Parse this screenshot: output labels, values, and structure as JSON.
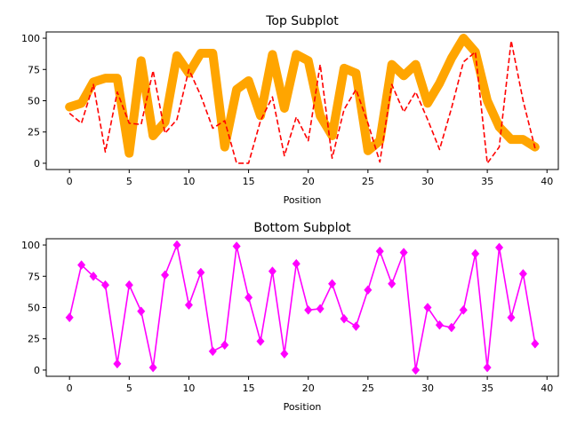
{
  "chart_data": [
    {
      "type": "line",
      "title": "Top Subplot",
      "xlabel": "Position",
      "ylabel": "",
      "xlim": [
        -1.95,
        40.95
      ],
      "ylim": [
        -5,
        105
      ],
      "xticks": [
        0,
        5,
        10,
        15,
        20,
        25,
        30,
        35,
        40
      ],
      "yticks": [
        0,
        25,
        50,
        75,
        100
      ],
      "x": [
        0,
        1,
        2,
        3,
        4,
        5,
        6,
        7,
        8,
        9,
        10,
        11,
        12,
        13,
        14,
        15,
        16,
        17,
        18,
        19,
        20,
        21,
        22,
        23,
        24,
        25,
        26,
        27,
        28,
        29,
        30,
        31,
        32,
        33,
        34,
        35,
        36,
        37,
        38,
        39
      ],
      "series": [
        {
          "style": "thick-solid",
          "color": "#ffa500",
          "values": [
            45,
            48,
            65,
            68,
            68,
            8,
            82,
            22,
            33,
            86,
            72,
            88,
            88,
            13,
            59,
            66,
            38,
            87,
            44,
            87,
            82,
            38,
            22,
            76,
            72,
            10,
            18,
            79,
            70,
            79,
            48,
            64,
            84,
            100,
            89,
            50,
            29,
            19,
            19,
            13
          ]
        },
        {
          "style": "dashed",
          "color": "#ff0000",
          "values": [
            40,
            32,
            63,
            9,
            57,
            32,
            31,
            74,
            24,
            35,
            75,
            54,
            28,
            34,
            0,
            0,
            34,
            53,
            6,
            37,
            18,
            79,
            4,
            43,
            59,
            32,
            1,
            63,
            41,
            57,
            35,
            11,
            44,
            81,
            89,
            0,
            13,
            98,
            50,
            12
          ]
        }
      ]
    },
    {
      "type": "line",
      "title": "Bottom Subplot",
      "xlabel": "Position",
      "ylabel": "",
      "xlim": [
        -1.95,
        40.95
      ],
      "ylim": [
        -5,
        105
      ],
      "xticks": [
        0,
        5,
        10,
        15,
        20,
        25,
        30,
        35,
        40
      ],
      "yticks": [
        0,
        25,
        50,
        75,
        100
      ],
      "x": [
        0,
        1,
        2,
        3,
        4,
        5,
        6,
        7,
        8,
        9,
        10,
        11,
        12,
        13,
        14,
        15,
        16,
        17,
        18,
        19,
        20,
        21,
        22,
        23,
        24,
        25,
        26,
        27,
        28,
        29,
        30,
        31,
        32,
        33,
        34,
        35,
        36,
        37,
        38,
        39
      ],
      "series": [
        {
          "style": "solid-diamond",
          "color": "#ff00ff",
          "values": [
            42,
            84,
            75,
            68,
            5,
            68,
            47,
            2,
            76,
            100,
            52,
            78,
            15,
            20,
            99,
            58,
            23,
            79,
            13,
            85,
            48,
            49,
            69,
            41,
            35,
            64,
            95,
            69,
            94,
            0,
            50,
            36,
            34,
            48,
            93,
            2,
            98,
            42,
            77,
            21
          ]
        }
      ]
    }
  ]
}
